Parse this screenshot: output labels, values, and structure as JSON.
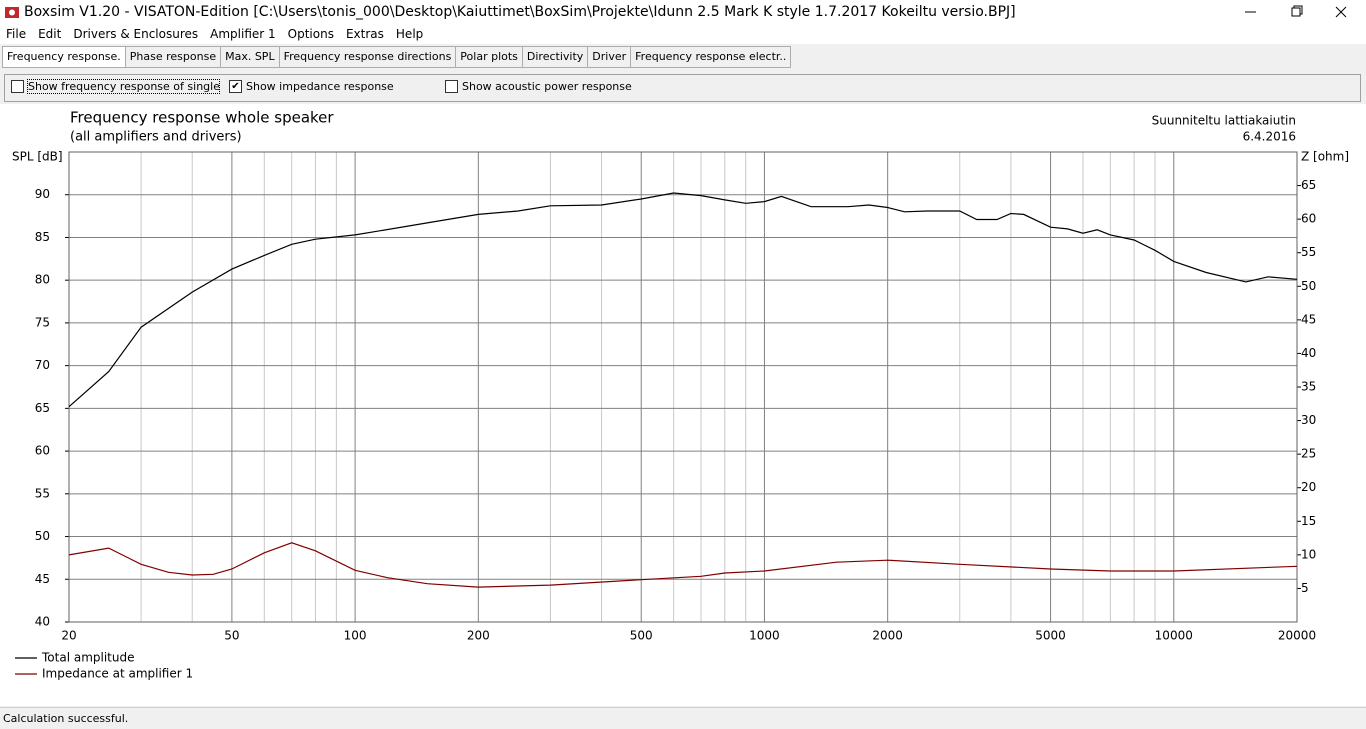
{
  "window": {
    "title": "Boxsim V1.20 - VISATON-Edition [C:\\Users\\tonis_000\\Desktop\\Kaiuttimet\\BoxSim\\Projekte\\Idunn 2.5 Mark K style 1.7.2017 Kokeiltu versio.BPJ]",
    "menu": [
      "File",
      "Edit",
      "Drivers & Enclosures",
      "Amplifier 1",
      "Options",
      "Extras",
      "Help"
    ],
    "tabs": [
      "Frequency response.",
      "Phase response",
      "Max. SPL",
      "Frequency response directions",
      "Polar plots",
      "Directivity",
      "Driver",
      "Frequency response electr.."
    ],
    "options": [
      {
        "label": "Show frequency response of single drive",
        "checked": false
      },
      {
        "label": "Show impedance response",
        "checked": true
      },
      {
        "label": "Show acoustic power response",
        "checked": false
      }
    ],
    "status": "Calculation successful."
  },
  "chart_data": {
    "type": "line",
    "title": "Frequency response whole speaker",
    "subtitle": "(all amplifiers and drivers)",
    "annotations": [
      "Suunniteltu lattiakaiutin",
      "6.4.2016"
    ],
    "y_label": "SPL [dB]",
    "y2_label": "Z [ohm]",
    "xlog": true,
    "xlim": [
      20,
      20000
    ],
    "xticks": [
      20,
      50,
      100,
      200,
      500,
      1000,
      2000,
      5000,
      10000,
      20000
    ],
    "xminorticks": [
      30,
      40,
      60,
      70,
      80,
      90,
      300,
      400,
      600,
      700,
      800,
      900,
      3000,
      4000,
      6000,
      7000,
      8000,
      9000
    ],
    "ylim": [
      40,
      95
    ],
    "yticks": [
      40,
      45,
      50,
      55,
      60,
      65,
      70,
      75,
      80,
      85,
      90
    ],
    "y2lim": [
      0,
      70
    ],
    "y2ticks": [
      5,
      10,
      15,
      20,
      25,
      30,
      35,
      40,
      45,
      50,
      55,
      60,
      65
    ],
    "grid": true,
    "legend": "bottom-left",
    "series": [
      {
        "name": "Total amplitude",
        "color": "#000000",
        "x": [
          20,
          25,
          30,
          40,
          50,
          60,
          70,
          80,
          100,
          150,
          200,
          250,
          300,
          400,
          500,
          600,
          700,
          800,
          900,
          1000,
          1100,
          1300,
          1600,
          1800,
          2000,
          2200,
          2500,
          3000,
          3300,
          3700,
          4000,
          4300,
          5000,
          5500,
          6000,
          6500,
          7000,
          8000,
          9000,
          10000,
          12000,
          15000,
          17000,
          20000
        ],
        "values": [
          65.2,
          69.3,
          74.5,
          78.6,
          81.3,
          82.9,
          84.2,
          84.8,
          85.3,
          86.7,
          87.7,
          88.1,
          88.7,
          88.8,
          89.5,
          90.2,
          89.9,
          89.4,
          89.0,
          89.2,
          89.8,
          88.6,
          88.6,
          88.8,
          88.5,
          88.0,
          88.1,
          88.1,
          87.1,
          87.1,
          87.8,
          87.7,
          86.2,
          86.0,
          85.5,
          85.9,
          85.3,
          84.7,
          83.5,
          82.2,
          80.9,
          79.8,
          80.4,
          80.1
        ]
      },
      {
        "name": "Impedance at amplifier 1",
        "color": "#800000",
        "axis": "y2",
        "x": [
          20,
          25,
          30,
          35,
          40,
          45,
          50,
          60,
          70,
          80,
          100,
          120,
          150,
          200,
          300,
          500,
          700,
          800,
          1000,
          1500,
          2000,
          3000,
          5000,
          7000,
          10000,
          20000
        ],
        "values": [
          10.0,
          11.0,
          8.6,
          7.4,
          7.0,
          7.1,
          7.9,
          10.3,
          11.8,
          10.6,
          7.7,
          6.6,
          5.7,
          5.2,
          5.5,
          6.3,
          6.8,
          7.3,
          7.6,
          8.9,
          9.2,
          8.6,
          7.9,
          7.6,
          7.6,
          8.3
        ]
      }
    ]
  }
}
